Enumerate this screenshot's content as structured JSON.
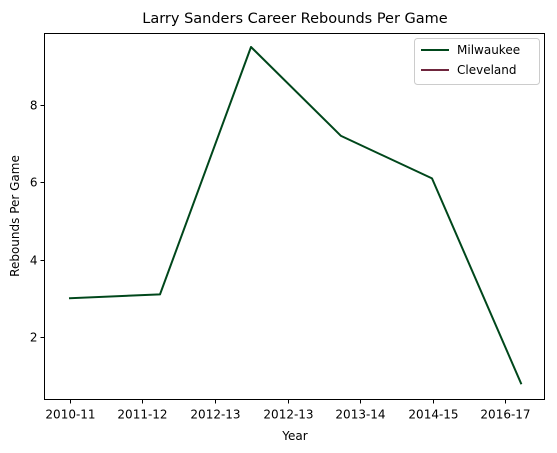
{
  "chart_data": {
    "type": "line",
    "title": "Larry Sanders  Career Rebounds Per Game",
    "xlabel": "Year",
    "ylabel": "Rebounds Per Game",
    "categories": [
      "2010-11",
      "2011-12",
      "2012-13",
      "2012-13",
      "2013-14",
      "2014-15",
      "2016-17"
    ],
    "x_range": [
      -0.3,
      6.3
    ],
    "y_range": [
      0.38,
      9.85
    ],
    "y_ticks": [
      2,
      4,
      6,
      8
    ],
    "grid": false,
    "legend_position": "top-right",
    "series": [
      {
        "name": "Milwaukee",
        "color": "#00471B",
        "x": [
          0,
          1,
          2,
          3,
          4,
          5,
          6
        ],
        "values": [
          3.0,
          3.1,
          3.1,
          9.5,
          7.2,
          6.1,
          0.8
        ],
        "x_positions": [
          0,
          1,
          1,
          2,
          3,
          4,
          5
        ]
      },
      {
        "name": "Cleveland",
        "color": "#6F263D",
        "x": [],
        "values": []
      }
    ]
  }
}
